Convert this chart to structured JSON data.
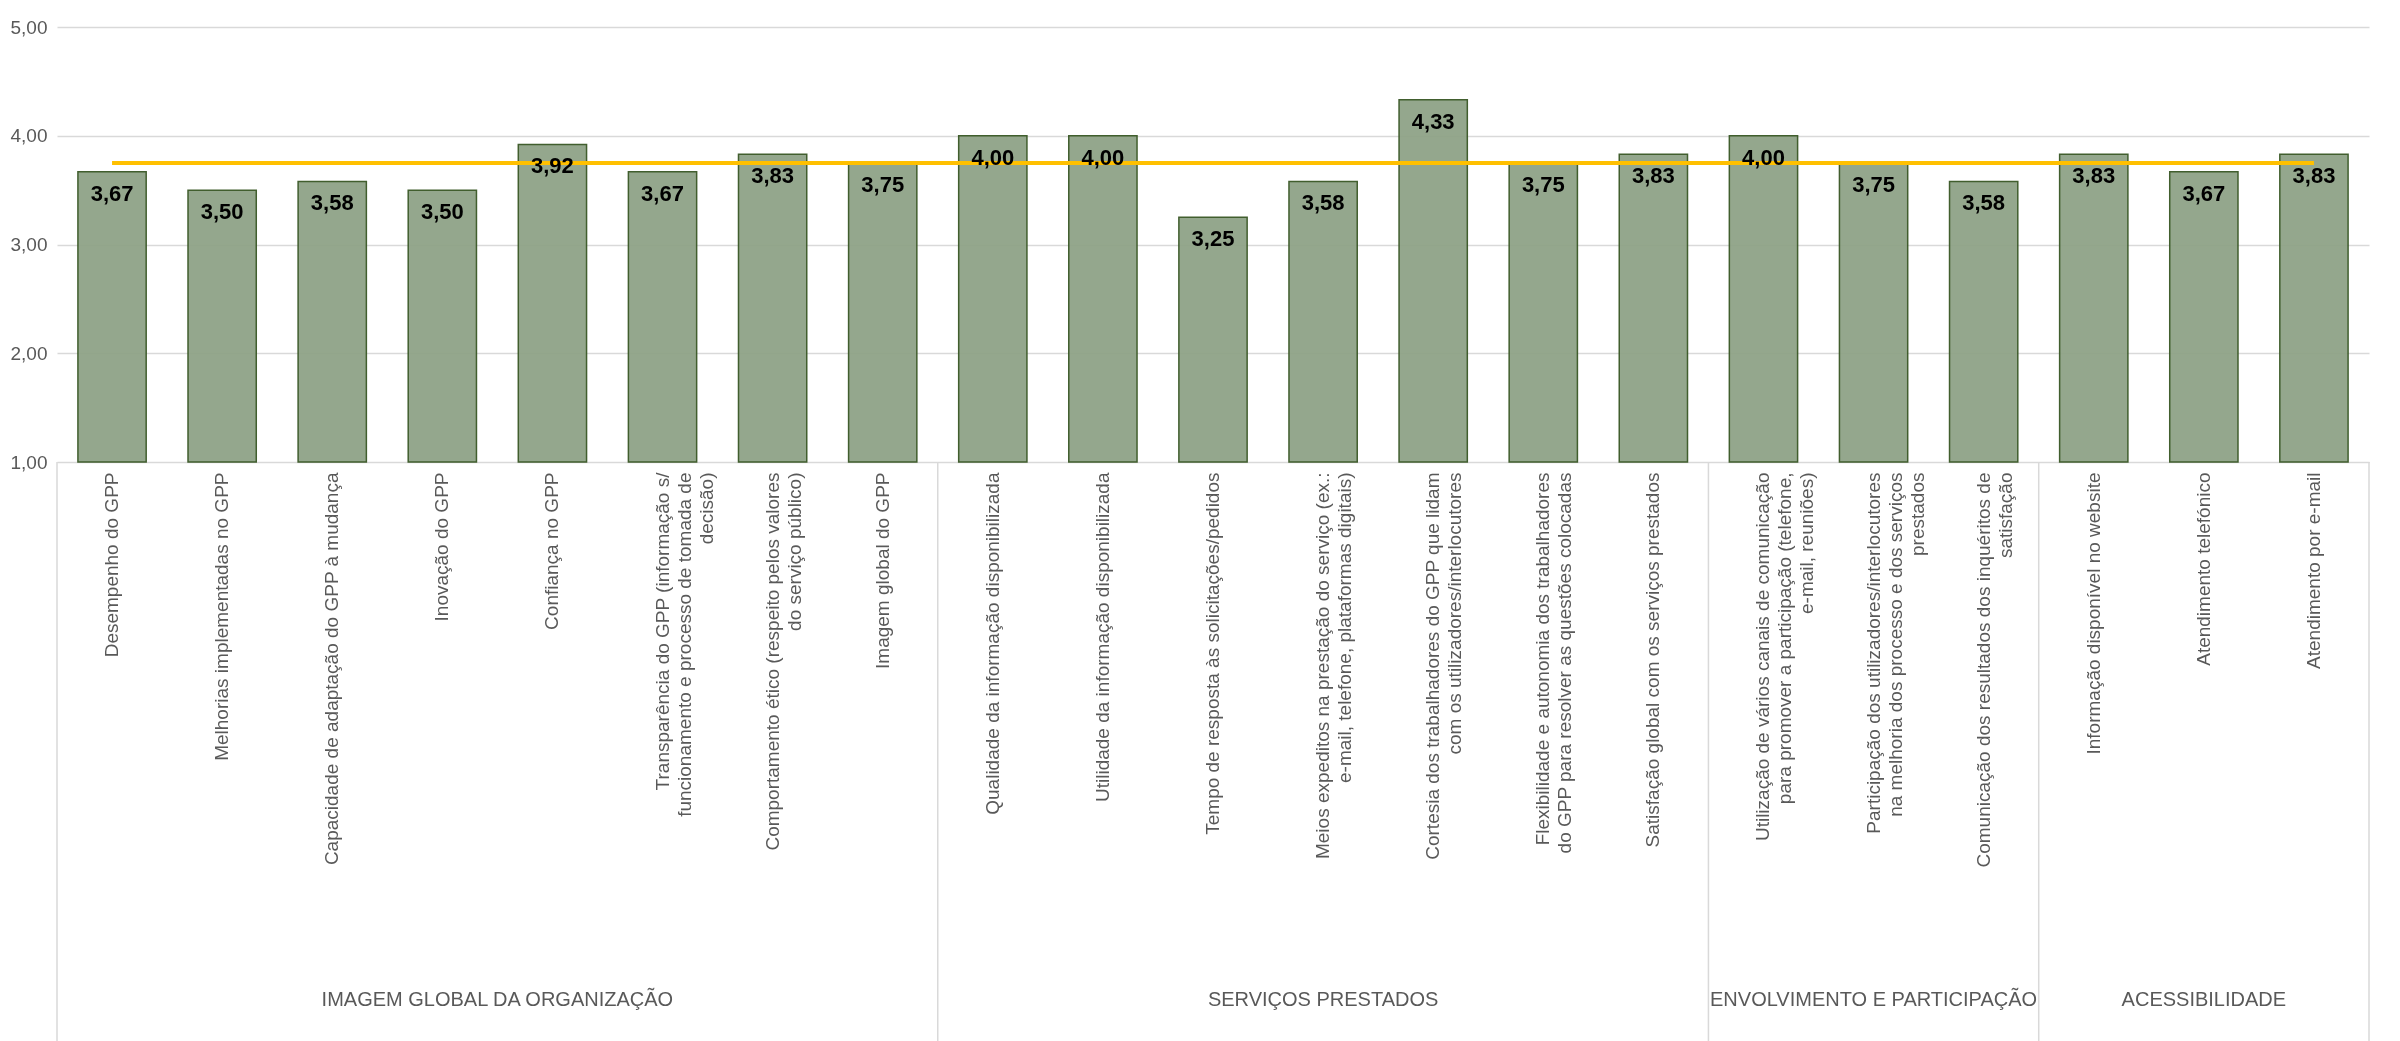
{
  "chart_data": {
    "type": "bar",
    "categories": [
      "Desempenho do GPP",
      "Melhorias implementadas no GPP",
      "Capacidade de adaptação do GPP à mudança",
      "Inovação do GPP",
      "Confiança no GPP",
      "Transparência do GPP (informação s/ funcionamento e processo de tomada de decisão)",
      "Comportamento ético (respeito pelos valores do serviço público)",
      "Imagem global do GPP",
      "Qualidade da informação disponibilizada",
      "Utilidade da informação disponibilizada",
      "Tempo de resposta às solicitações/pedidos",
      "Meios expeditos na prestação do serviço (ex.: e-mail, telefone, plataformas digitais)",
      "Cortesia dos trabalhadores do GPP que lidam com os utilizadores/interlocutores",
      "Flexibilidade e autonomia dos trabalhadores do GPP para resolver as questões colocadas",
      "Satisfação global com os serviços prestados",
      "Utilização de vários canais de comunicação para promover a participação (telefone, e-mail, reuniões)",
      "Participação dos utilizadores/interlocutores na melhoria dos processo e dos serviços prestados",
      "Comunicação dos resultados dos inquéritos de satisfação",
      "Informação disponível no website",
      "Atendimento telefónico",
      "Atendimento por e-mail"
    ],
    "values": [
      3.67,
      3.5,
      3.58,
      3.5,
      3.92,
      3.67,
      3.83,
      3.75,
      4.0,
      4.0,
      3.25,
      3.58,
      4.33,
      3.75,
      3.83,
      4.0,
      3.75,
      3.58,
      3.83,
      3.67,
      3.83
    ],
    "color": "#8fa387",
    "value_labels": [
      "3,67",
      "3,50",
      "3,58",
      "3,50",
      "3,92",
      "3,67",
      "3,83",
      "3,75",
      "4,00",
      "4,00",
      "3,25",
      "3,58",
      "4,33",
      "3,75",
      "3,83",
      "4,00",
      "3,75",
      "3,58",
      "3,83",
      "3,67",
      "3,83"
    ],
    "ylim": [
      1,
      5
    ],
    "yticks": [
      {
        "value": 1,
        "label": "1,00"
      },
      {
        "value": 2,
        "label": "2,00"
      },
      {
        "value": 3,
        "label": "3,00"
      },
      {
        "value": 4,
        "label": "4,00"
      },
      {
        "value": 5,
        "label": "5,00"
      }
    ],
    "grid": "y",
    "ref_lines": [
      {
        "axis": "y",
        "value": 3.75,
        "color": "#ffc000"
      }
    ],
    "annotations": [
      "IMAGEM GLOBAL DA ORGANIZAÇÃO",
      "SERVIÇOS PRESTADOS",
      "ENVOLVIMENTO E PARTICIPAÇÃO",
      "ACESSIBILIDADE"
    ]
  }
}
